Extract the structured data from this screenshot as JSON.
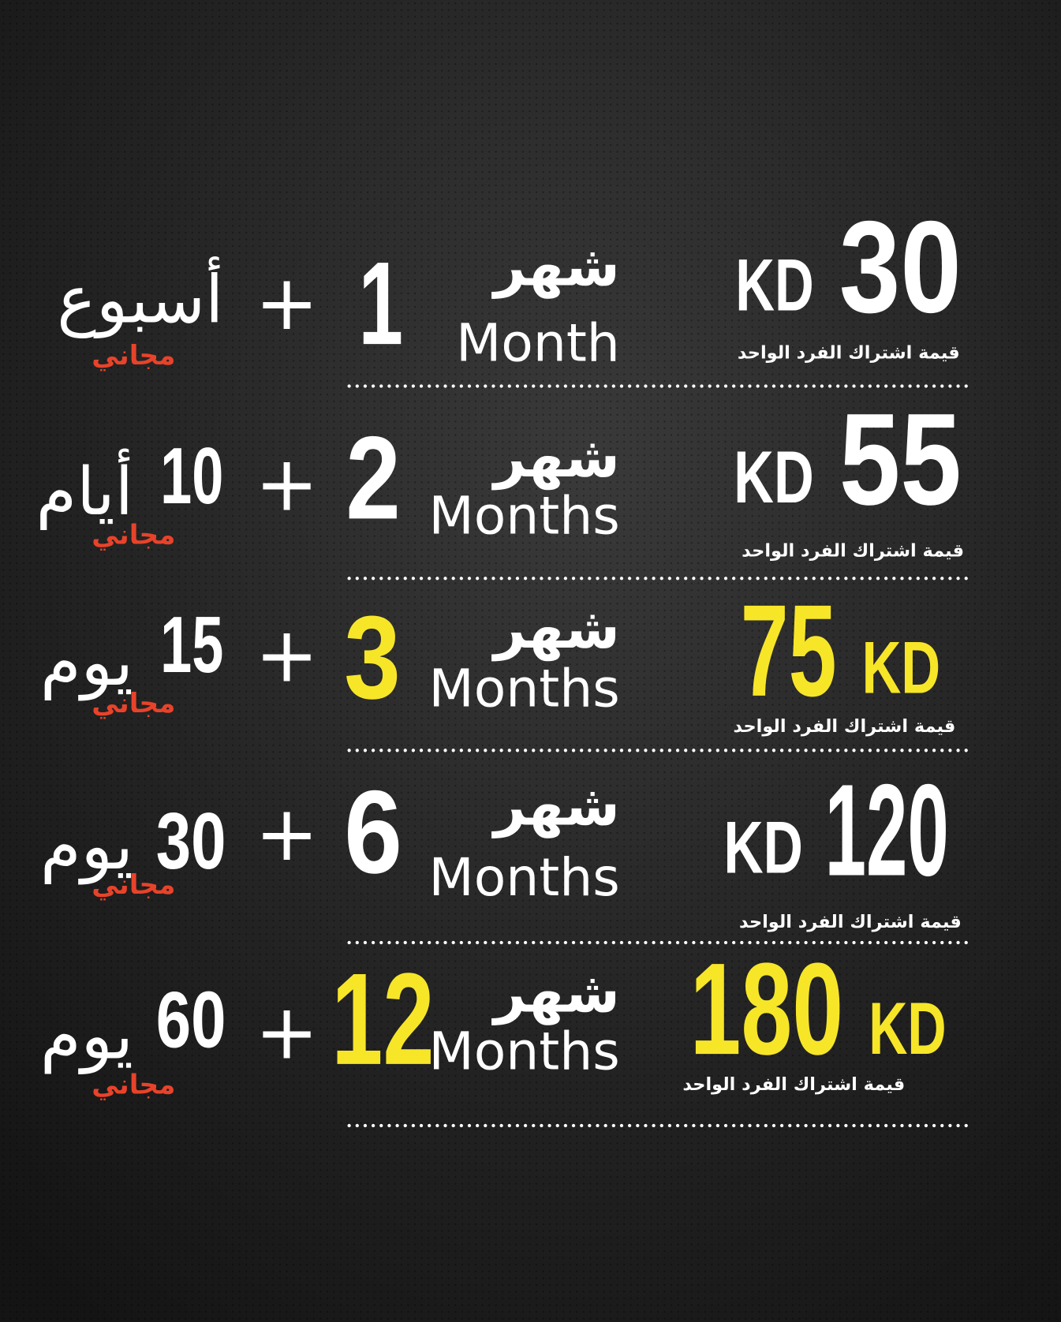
{
  "rows": [
    {
      "price": 30,
      "currency": "KD",
      "note": "قيمة اشتراك الفرد الواحد",
      "months": 1,
      "month_ar": "شهر",
      "month_en": "Month",
      "plus": "+",
      "bonus_unit": "أسبوع",
      "free": "مجاني",
      "color": "#ffffff"
    },
    {
      "price": 55,
      "currency": "KD",
      "note": "قيمة اشتراك الفرد الواحد",
      "months": 2,
      "month_ar": "شهر",
      "month_en": "Months",
      "plus": "+",
      "bonus_number": 10,
      "bonus_unit": "أيام",
      "free": "مجاني",
      "color": "#ffffff"
    },
    {
      "price": 75,
      "currency": "KD",
      "note": "قيمة اشتراك الفرد الواحد",
      "months": 3,
      "month_ar": "شهر",
      "month_en": "Months",
      "plus": "+",
      "bonus_number": 15,
      "bonus_unit": "يوم",
      "free": "مجاني",
      "color": "#f7e628"
    },
    {
      "price": 120,
      "currency": "KD",
      "note": "قيمة اشتراك الفرد الواحد",
      "months": 6,
      "month_ar": "شهر",
      "month_en": "Months",
      "plus": "+",
      "bonus_number": 30,
      "bonus_unit": "يوم",
      "free": "مجاني",
      "color": "#ffffff"
    },
    {
      "price": 180,
      "currency": "KD",
      "note": "قيمة اشتراك الفرد الواحد",
      "months": 12,
      "month_ar": "شهر",
      "month_en": "Months",
      "plus": "+",
      "bonus_number": 60,
      "bonus_unit": "يوم",
      "free": "مجاني",
      "color": "#f7e628"
    }
  ]
}
